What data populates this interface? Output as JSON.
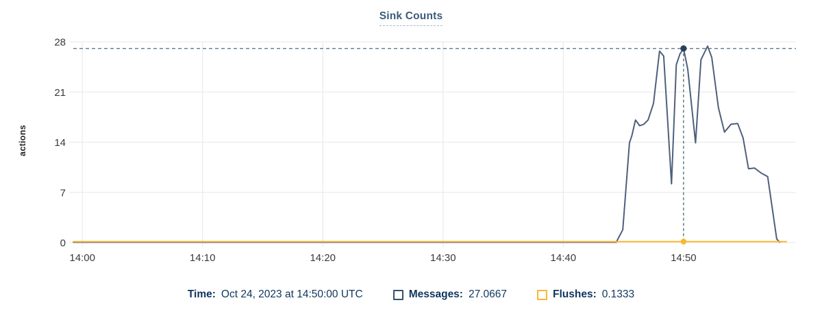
{
  "chart": {
    "title": "Sink Counts",
    "ylabel": "actions"
  },
  "legend": {
    "time_label": "Time:",
    "time_value": "Oct 24, 2023 at 14:50:00 UTC",
    "messages_label": "Messages:",
    "messages_value": "27.0667",
    "flushes_label": "Flushes:",
    "flushes_value": "0.1333"
  },
  "chart_data": {
    "type": "line",
    "title": "Sink Counts",
    "xlabel": "",
    "ylabel": "actions",
    "x_unit": "minutes after 14:00, Oct 24 2023 UTC",
    "xlim": [
      -0.75,
      59.35
    ],
    "ylim": [
      0,
      28
    ],
    "grid": "horizontal and vertical, light gray",
    "legend_position": "bottom-center",
    "x_ticks": [
      {
        "t": 0,
        "label": "14:00"
      },
      {
        "t": 10,
        "label": "14:10"
      },
      {
        "t": 20,
        "label": "14:20"
      },
      {
        "t": 30,
        "label": "14:30"
      },
      {
        "t": 40,
        "label": "14:40"
      },
      {
        "t": 50,
        "label": "14:50"
      }
    ],
    "y_ticks": [
      0,
      7,
      14,
      21,
      28
    ],
    "series": [
      {
        "name": "Messages",
        "color": "#4e5f7c",
        "points": [
          [
            -0.75,
            0.05
          ],
          [
            44.4,
            0.05
          ],
          [
            44.95,
            1.8
          ],
          [
            45.5,
            13.9
          ],
          [
            45.7,
            14.9
          ],
          [
            46.0,
            17.1
          ],
          [
            46.35,
            16.3
          ],
          [
            46.7,
            16.5
          ],
          [
            47.05,
            17.1
          ],
          [
            47.5,
            19.4
          ],
          [
            48.0,
            26.7
          ],
          [
            48.35,
            26.0
          ],
          [
            49.0,
            8.2
          ],
          [
            49.4,
            24.8
          ],
          [
            49.7,
            26.3
          ],
          [
            50.0,
            27.0667
          ],
          [
            50.35,
            24.2
          ],
          [
            51.0,
            13.9
          ],
          [
            51.45,
            25.5
          ],
          [
            52.0,
            27.4
          ],
          [
            52.35,
            25.8
          ],
          [
            52.9,
            18.8
          ],
          [
            53.4,
            15.4
          ],
          [
            53.95,
            16.5
          ],
          [
            54.5,
            16.6
          ],
          [
            54.95,
            14.6
          ],
          [
            55.4,
            10.3
          ],
          [
            55.9,
            10.4
          ],
          [
            56.45,
            9.7
          ],
          [
            57.0,
            9.2
          ],
          [
            57.75,
            0.5
          ],
          [
            58.0,
            0.05
          ]
        ]
      },
      {
        "name": "Flushes",
        "color": "#fbb731",
        "points": [
          [
            -0.75,
            0.1333
          ],
          [
            58.55,
            0.1333
          ]
        ]
      }
    ],
    "highlight": {
      "t": 50,
      "time_label": "Oct 24, 2023 at 14:50:00 UTC",
      "messages": 27.0667,
      "flushes": 0.1333
    },
    "colors": {
      "messages": "#4e5f7c",
      "flushes": "#fbb731",
      "marker": "#2a3f5c",
      "crosshair_horizontal": "#4c6f80",
      "crosshair_vertical": "#2e6b60",
      "grid": "#ececec",
      "tick_text": "#3a3a3a",
      "title_text": "#3c5a7c",
      "legend_text": "#0f355e"
    }
  }
}
